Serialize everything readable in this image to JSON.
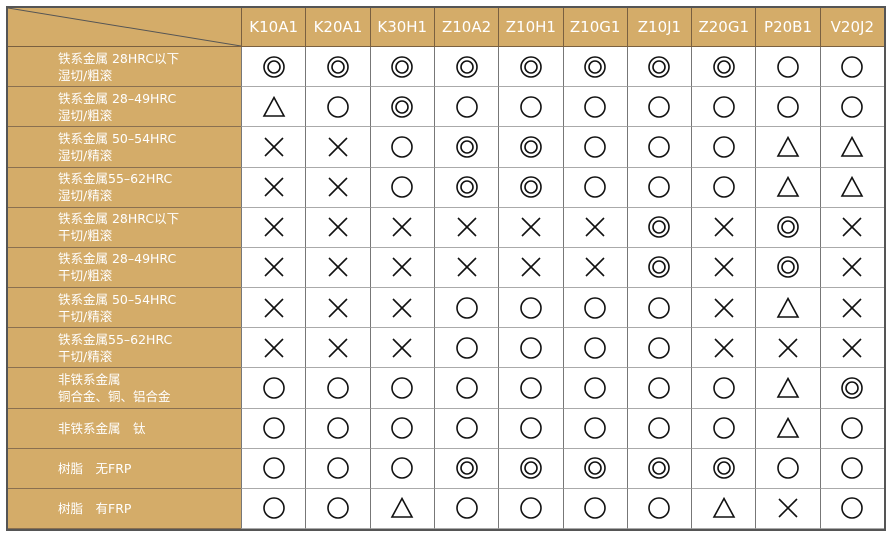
{
  "colors": {
    "header_bg": "#d4ac69",
    "header_text": "#ffffff",
    "symbol": "#111111"
  },
  "legend_symbols": {
    "double-circle": "◎",
    "circle": "○",
    "triangle": "△",
    "cross": "×"
  },
  "columns": [
    "K10A1",
    "K20A1",
    "K30H1",
    "Z10A2",
    "Z10H1",
    "Z10G1",
    "Z10J1",
    "Z20G1",
    "P20B1",
    "V20J2"
  ],
  "rows": [
    {
      "line1": "铁系金属 28HRC以下",
      "line2": "湿切/粗滚",
      "ratings": [
        "◎",
        "◎",
        "◎",
        "◎",
        "◎",
        "◎",
        "◎",
        "◎",
        "○",
        "○"
      ]
    },
    {
      "line1": "铁系金属 28–49HRC",
      "line2": "湿切/粗滚",
      "ratings": [
        "△",
        "○",
        "◎",
        "○",
        "○",
        "○",
        "○",
        "○",
        "○",
        "○"
      ]
    },
    {
      "line1": "铁系金属 50–54HRC",
      "line2": "湿切/精滚",
      "ratings": [
        "×",
        "×",
        "○",
        "◎",
        "◎",
        "○",
        "○",
        "○",
        "△",
        "△"
      ]
    },
    {
      "line1": "铁系金属55–62HRC",
      "line2": "湿切/精滚",
      "ratings": [
        "×",
        "×",
        "○",
        "◎",
        "◎",
        "○",
        "○",
        "○",
        "△",
        "△"
      ]
    },
    {
      "line1": "铁系金属 28HRC以下",
      "line2": "干切/粗滚",
      "ratings": [
        "×",
        "×",
        "×",
        "×",
        "×",
        "×",
        "◎",
        "×",
        "◎",
        "×"
      ]
    },
    {
      "line1": "铁系金属 28–49HRC",
      "line2": "干切/粗滚",
      "ratings": [
        "×",
        "×",
        "×",
        "×",
        "×",
        "×",
        "◎",
        "×",
        "◎",
        "×"
      ]
    },
    {
      "line1": "铁系金属 50–54HRC",
      "line2": "干切/精滚",
      "ratings": [
        "×",
        "×",
        "×",
        "○",
        "○",
        "○",
        "○",
        "×",
        "△",
        "×"
      ]
    },
    {
      "line1": "铁系金属55–62HRC",
      "line2": "干切/精滚",
      "ratings": [
        "×",
        "×",
        "×",
        "○",
        "○",
        "○",
        "○",
        "×",
        "×",
        "×"
      ]
    },
    {
      "line1": "非铁系金属",
      "line2": "铜合金、铜、铝合金",
      "ratings": [
        "○",
        "○",
        "○",
        "○",
        "○",
        "○",
        "○",
        "○",
        "△",
        "◎"
      ]
    },
    {
      "line1": "非铁系金属　钛",
      "line2": "",
      "ratings": [
        "○",
        "○",
        "○",
        "○",
        "○",
        "○",
        "○",
        "○",
        "△",
        "○"
      ]
    },
    {
      "line1": "树脂　无FRP",
      "line2": "",
      "ratings": [
        "○",
        "○",
        "○",
        "◎",
        "◎",
        "◎",
        "◎",
        "◎",
        "○",
        "○"
      ]
    },
    {
      "line1": "树脂　有FRP",
      "line2": "",
      "ratings": [
        "○",
        "○",
        "△",
        "○",
        "○",
        "○",
        "○",
        "△",
        "×",
        "○"
      ]
    }
  ]
}
